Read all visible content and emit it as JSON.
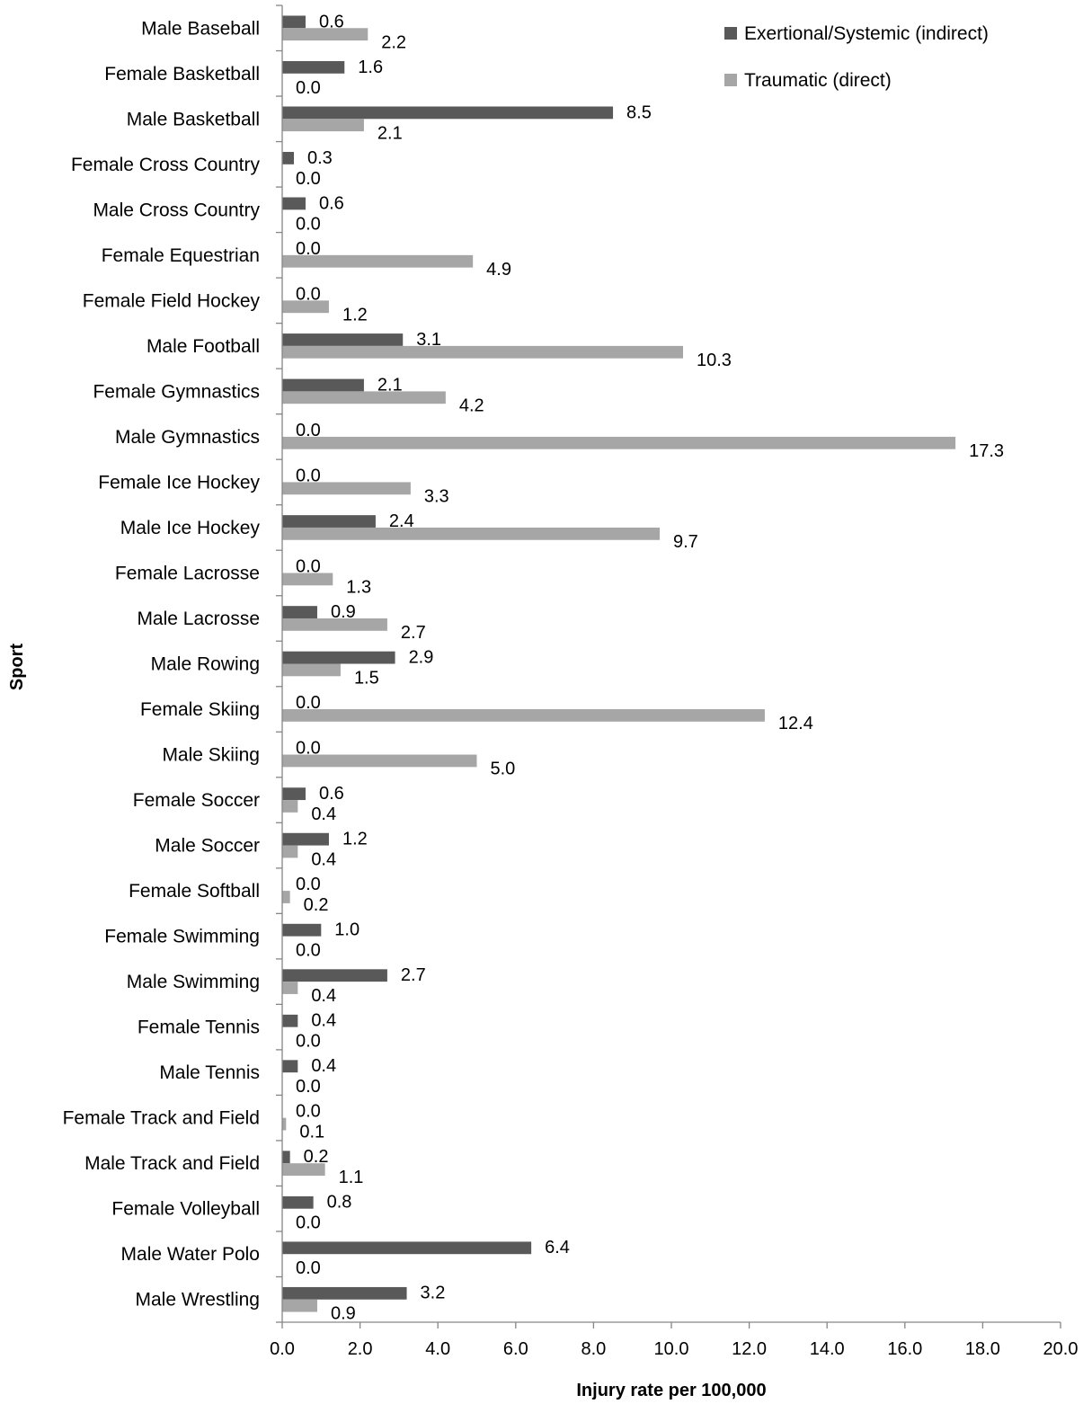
{
  "chart_data": {
    "type": "bar",
    "orientation": "horizontal",
    "title": "",
    "xlabel": "Injury rate per 100,000",
    "ylabel": "Sport",
    "xlim": [
      0,
      20
    ],
    "xticks": [
      "0.0",
      "2.0",
      "4.0",
      "6.0",
      "8.0",
      "10.0",
      "12.0",
      "14.0",
      "16.0",
      "18.0",
      "20.0"
    ],
    "xtick_values": [
      0,
      2,
      4,
      6,
      8,
      10,
      12,
      14,
      16,
      18,
      20
    ],
    "grid": false,
    "legend_position": "top-right",
    "categories": [
      "Male Baseball",
      "Female Basketball",
      "Male Basketball",
      "Female Cross Country",
      "Male Cross Country",
      "Female Equestrian",
      "Female Field Hockey",
      "Male Football",
      "Female Gymnastics",
      "Male Gymnastics",
      "Female Ice Hockey",
      "Male Ice Hockey",
      "Female Lacrosse",
      "Male Lacrosse",
      "Male Rowing",
      "Female Skiing",
      "Male Skiing",
      "Female Soccer",
      "Male Soccer",
      "Female Softball",
      "Female Swimming",
      "Male Swimming",
      "Female Tennis",
      "Male Tennis",
      "Female Track and Field",
      "Male Track and Field",
      "Female Volleyball",
      "Male Water Polo",
      "Male Wrestling"
    ],
    "series": [
      {
        "name": "Exertional/Systemic (indirect)",
        "color": "#595959",
        "values": [
          0.6,
          1.6,
          8.5,
          0.3,
          0.6,
          0.0,
          0.0,
          3.1,
          2.1,
          0.0,
          0.0,
          2.4,
          0.0,
          0.9,
          2.9,
          0.0,
          0.0,
          0.6,
          1.2,
          0.0,
          1.0,
          2.7,
          0.4,
          0.4,
          0.0,
          0.2,
          0.8,
          6.4,
          3.2
        ],
        "labels": [
          "0.6",
          "1.6",
          "8.5",
          "0.3",
          "0.6",
          "0.0",
          "0.0",
          "3.1",
          "2.1",
          "0.0",
          "0.0",
          "2.4",
          "0.0",
          "0.9",
          "2.9",
          "0.0",
          "0.0",
          "0.6",
          "1.2",
          "0.0",
          "1.0",
          "2.7",
          "0.4",
          "0.4",
          "0.0",
          "0.2",
          "0.8",
          "6.4",
          "3.2"
        ]
      },
      {
        "name": "Traumatic (direct)",
        "color": "#a6a6a6",
        "values": [
          2.2,
          0.0,
          2.1,
          0.0,
          0.0,
          4.9,
          1.2,
          10.3,
          4.2,
          17.3,
          3.3,
          9.7,
          1.3,
          2.7,
          1.5,
          12.4,
          5.0,
          0.4,
          0.4,
          0.2,
          0.0,
          0.4,
          0.0,
          0.0,
          0.1,
          1.1,
          0.0,
          0.0,
          0.9
        ],
        "labels": [
          "2.2",
          "0.0",
          "2.1",
          "0.0",
          "0.0",
          "4.9",
          "1.2",
          "10.3",
          "4.2",
          "17.3",
          "3.3",
          "9.7",
          "1.3",
          "2.7",
          "1.5",
          "12.4",
          "5.0",
          "0.4",
          "0.4",
          "0.2",
          "0.0",
          "0.4",
          "0.0",
          "0.0",
          "0.1",
          "1.1",
          "0.0",
          "0.0",
          "0.9"
        ]
      }
    ]
  }
}
